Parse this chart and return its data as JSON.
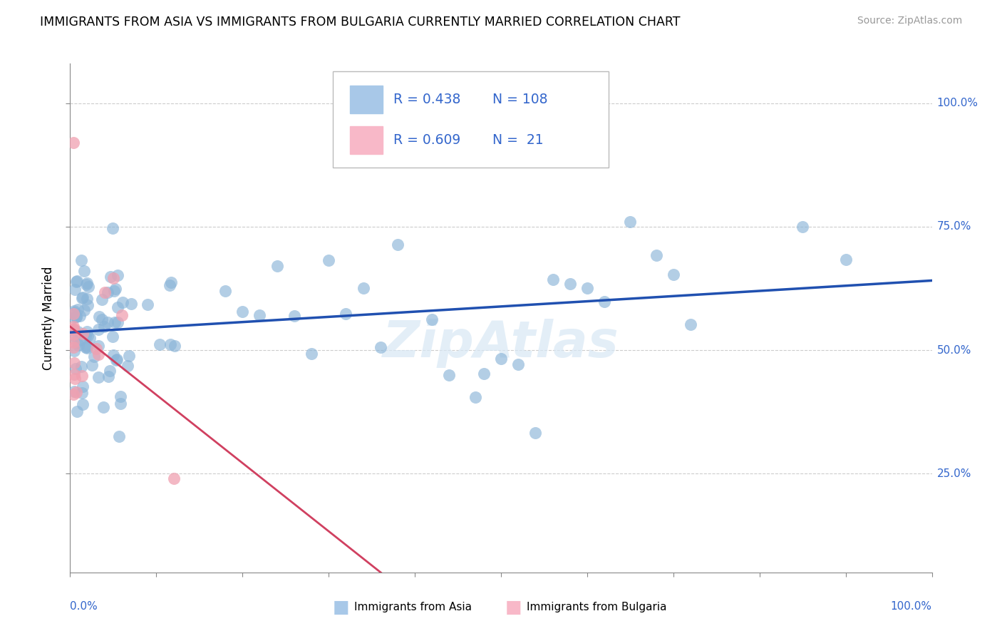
{
  "title": "IMMIGRANTS FROM ASIA VS IMMIGRANTS FROM BULGARIA CURRENTLY MARRIED CORRELATION CHART",
  "source": "Source: ZipAtlas.com",
  "ylabel": "Currently Married",
  "ytick_values": [
    0.25,
    0.5,
    0.75,
    1.0
  ],
  "ytick_labels": [
    "25.0%",
    "50.0%",
    "75.0%",
    "100.0%"
  ],
  "xlim": [
    0.0,
    1.0
  ],
  "ylim": [
    0.05,
    1.08
  ],
  "blue_scatter_color": "#8ab4d8",
  "pink_scatter_color": "#f0a0b0",
  "blue_line_color": "#2050b0",
  "pink_line_color": "#d04060",
  "legend_blue_color": "#a8c8e8",
  "legend_pink_color": "#f8b8c8",
  "R_blue": 0.438,
  "N_blue": 108,
  "R_pink": 0.609,
  "N_pink": 21,
  "label_blue": "Immigrants from Asia",
  "label_pink": "Immigrants from Bulgaria",
  "watermark_color": "#d8e8f5",
  "grid_color": "#cccccc"
}
